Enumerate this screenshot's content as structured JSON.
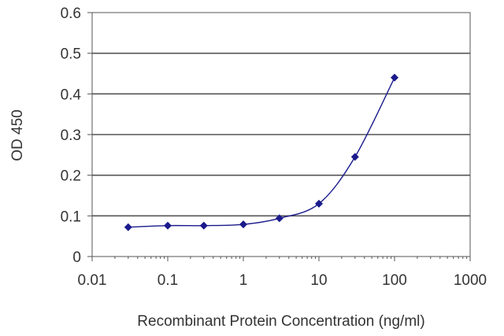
{
  "chart_data": {
    "type": "line",
    "title": "",
    "xlabel": "Recombinant Protein Concentration (ng/ml)",
    "ylabel": "OD 450",
    "x_scale": "log",
    "xlim": [
      0.01,
      1000
    ],
    "ylim": [
      0,
      0.6
    ],
    "x_ticks": [
      0.01,
      0.1,
      1,
      10,
      100,
      1000
    ],
    "x_tick_labels": [
      "0.01",
      "0.1",
      "1",
      "10",
      "100",
      "1000"
    ],
    "y_ticks": [
      0,
      0.1,
      0.2,
      0.3,
      0.4,
      0.5,
      0.6
    ],
    "y_tick_labels": [
      "0",
      "0.1",
      "0.2",
      "0.3",
      "0.4",
      "0.5",
      "0.6"
    ],
    "grid": "horizontal",
    "legend": "none",
    "series": [
      {
        "x": [
          0.03,
          0.1,
          0.3,
          1,
          3,
          10,
          30,
          100
        ],
        "y": [
          0.072,
          0.076,
          0.076,
          0.079,
          0.094,
          0.13,
          0.245,
          0.44
        ]
      }
    ],
    "colors": {
      "series": "#1a1a8c",
      "grid": "#555555",
      "frame": "#555555"
    }
  }
}
